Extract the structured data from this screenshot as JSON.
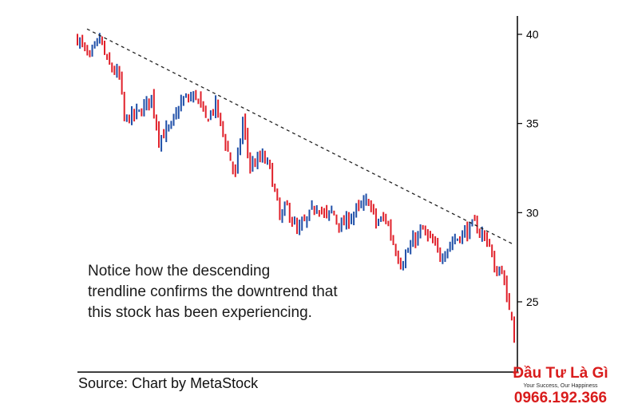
{
  "chart_data": {
    "type": "candlestick",
    "ylim": [
      21.5,
      41
    ],
    "y_ticks": [
      40,
      35,
      30,
      25
    ],
    "y_tick_labels": [
      "40",
      "35",
      "30",
      "25"
    ],
    "grid": false,
    "y_axis_position": "right",
    "colors": {
      "up": "#1f4fa8",
      "down": "#e0202a",
      "trendline": "#222222"
    },
    "trendline": {
      "style": "dashed",
      "from": {
        "index": 0,
        "value": 40.3
      },
      "to": {
        "index": 177,
        "value": 28.2
      }
    },
    "path_points": [
      [
        0,
        39.8
      ],
      [
        5,
        38.6
      ],
      [
        9,
        39.8
      ],
      [
        12,
        38.4
      ],
      [
        17,
        37.6
      ],
      [
        19,
        35.2
      ],
      [
        25,
        35.6
      ],
      [
        30,
        36.5
      ],
      [
        33,
        34.2
      ],
      [
        38,
        34.8
      ],
      [
        42,
        36.2
      ],
      [
        48,
        36.6
      ],
      [
        52,
        35.2
      ],
      [
        56,
        36.0
      ],
      [
        61,
        33.4
      ],
      [
        64,
        32.1
      ],
      [
        67,
        35.1
      ],
      [
        70,
        32.6
      ],
      [
        75,
        33.1
      ],
      [
        78,
        32.5
      ],
      [
        82,
        29.7
      ],
      [
        85,
        30.3
      ],
      [
        89,
        28.9
      ],
      [
        93,
        29.6
      ],
      [
        97,
        30.5
      ],
      [
        101,
        29.7
      ],
      [
        103,
        30.1
      ],
      [
        107,
        29.2
      ],
      [
        112,
        30.0
      ],
      [
        115,
        30.3
      ],
      [
        118,
        30.7
      ],
      [
        121,
        29.4
      ],
      [
        125,
        29.7
      ],
      [
        128,
        28.3
      ],
      [
        131,
        27.2
      ],
      [
        134,
        27.8
      ],
      [
        137,
        28.6
      ],
      [
        140,
        29.0
      ],
      [
        144,
        28.2
      ],
      [
        147,
        27.6
      ],
      [
        152,
        28.4
      ],
      [
        156,
        28.8
      ],
      [
        161,
        29.3
      ],
      [
        164,
        28.8
      ],
      [
        167,
        28.3
      ],
      [
        169,
        26.6
      ],
      [
        172,
        26.9
      ],
      [
        174,
        25.0
      ],
      [
        176,
        24.4
      ],
      [
        177,
        23.2
      ]
    ]
  },
  "annotation": {
    "lines": [
      "Notice how the descending",
      "trendline confirms the downtrend that",
      "this stock has been experiencing."
    ]
  },
  "source": "Source: Chart by MetaStock",
  "watermark": {
    "name": "Đầu Tư Là Gì",
    "tagline": "Your Success, Our Happiness",
    "phone": "0966.192.366"
  }
}
